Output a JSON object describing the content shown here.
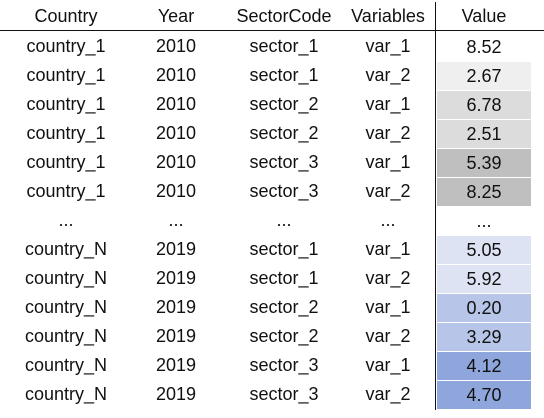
{
  "headers": {
    "country": "Country",
    "year": "Year",
    "sector": "SectorCode",
    "variable": "Variables",
    "value": "Value"
  },
  "rows": [
    {
      "country": "country_1",
      "year": "2010",
      "sector": "sector_1",
      "variable": "var_1",
      "value": "8.52",
      "bg": "#ffffff"
    },
    {
      "country": "country_1",
      "year": "2010",
      "sector": "sector_1",
      "variable": "var_2",
      "value": "2.67",
      "bg": "#efefef"
    },
    {
      "country": "country_1",
      "year": "2010",
      "sector": "sector_2",
      "variable": "var_1",
      "value": "6.78",
      "bg": "#dcdcdc"
    },
    {
      "country": "country_1",
      "year": "2010",
      "sector": "sector_2",
      "variable": "var_2",
      "value": "2.51",
      "bg": "#dcdcdc"
    },
    {
      "country": "country_1",
      "year": "2010",
      "sector": "sector_3",
      "variable": "var_1",
      "value": "5.39",
      "bg": "#bfbfbf"
    },
    {
      "country": "country_1",
      "year": "2010",
      "sector": "sector_3",
      "variable": "var_2",
      "value": "8.25",
      "bg": "#bfbfbf"
    },
    {
      "country": "...",
      "year": "...",
      "sector": "...",
      "variable": "...",
      "value": "...",
      "bg": "#ffffff"
    },
    {
      "country": "country_N",
      "year": "2019",
      "sector": "sector_1",
      "variable": "var_1",
      "value": "5.05",
      "bg": "#dde3f3"
    },
    {
      "country": "country_N",
      "year": "2019",
      "sector": "sector_1",
      "variable": "var_2",
      "value": "5.92",
      "bg": "#dde3f3"
    },
    {
      "country": "country_N",
      "year": "2019",
      "sector": "sector_2",
      "variable": "var_1",
      "value": "0.20",
      "bg": "#b7c5e8"
    },
    {
      "country": "country_N",
      "year": "2019",
      "sector": "sector_2",
      "variable": "var_2",
      "value": "3.29",
      "bg": "#b7c5e8"
    },
    {
      "country": "country_N",
      "year": "2019",
      "sector": "sector_3",
      "variable": "var_1",
      "value": "4.12",
      "bg": "#8fa6dc"
    },
    {
      "country": "country_N",
      "year": "2019",
      "sector": "sector_3",
      "variable": "var_2",
      "value": "4.70",
      "bg": "#8fa6dc"
    }
  ]
}
